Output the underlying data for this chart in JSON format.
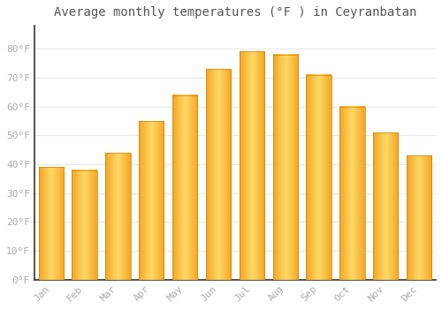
{
  "title": "Average monthly temperatures (°F ) in Ceyranbatan",
  "months": [
    "Jan",
    "Feb",
    "Mar",
    "Apr",
    "May",
    "Jun",
    "Jul",
    "Aug",
    "Sep",
    "Oct",
    "Nov",
    "Dec"
  ],
  "values": [
    39,
    38,
    44,
    55,
    64,
    73,
    79,
    78,
    71,
    60,
    51,
    43
  ],
  "bar_color_left": "#F5A623",
  "bar_color_center": "#FFD966",
  "bar_color_right": "#F5A623",
  "ylim": [
    0,
    88
  ],
  "yticks": [
    0,
    10,
    20,
    30,
    40,
    50,
    60,
    70,
    80
  ],
  "ytick_labels": [
    "0°F",
    "10°F",
    "20°F",
    "30°F",
    "40°F",
    "50°F",
    "60°F",
    "70°F",
    "80°F"
  ],
  "background_color": "#FFFFFF",
  "grid_color": "#E8E8E8",
  "title_fontsize": 10,
  "tick_fontsize": 8,
  "tick_color": "#AAAAAA",
  "spine_color": "#333333"
}
